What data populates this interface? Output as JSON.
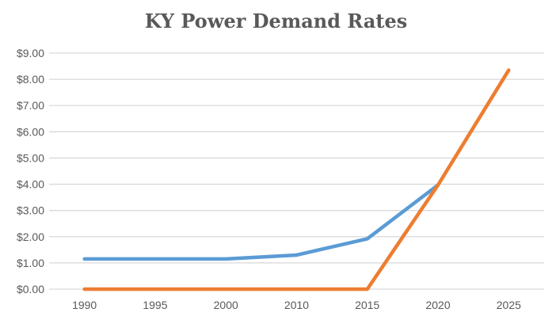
{
  "chart_data": {
    "type": "line",
    "title": "KY Power Demand Rates",
    "categories": [
      "1990",
      "1995",
      "2000",
      "2010",
      "2015",
      "2020",
      "2025"
    ],
    "series": [
      {
        "color": "#5B9BD5",
        "values": [
          1.15,
          1.15,
          1.15,
          1.3,
          1.92,
          3.97,
          null
        ]
      },
      {
        "color": "#ED7D31",
        "values": [
          0,
          0,
          0,
          0,
          0,
          3.97,
          8.35
        ]
      }
    ],
    "ylim": [
      0,
      9
    ],
    "y_ticks": [
      "$0.00",
      "$1.00",
      "$2.00",
      "$3.00",
      "$4.00",
      "$5.00",
      "$6.00",
      "$7.00",
      "$8.00",
      "$9.00"
    ],
    "grid": true,
    "legend": "none"
  }
}
